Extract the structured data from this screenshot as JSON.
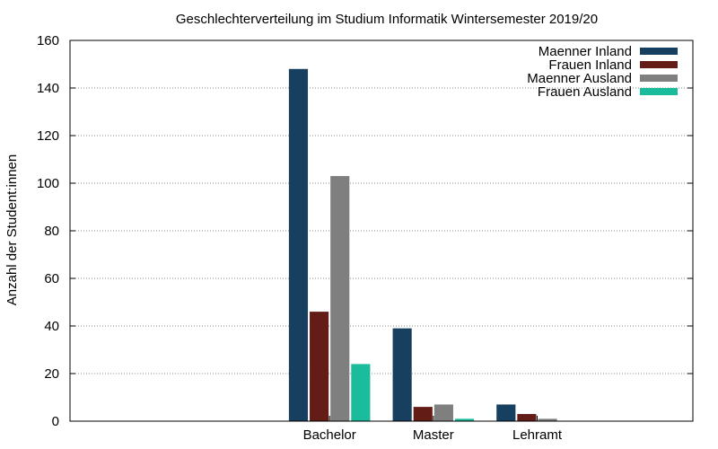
{
  "chart_data": {
    "type": "bar",
    "title": "Geschlechterverteilung im Studium Informatik Wintersemester 2019/20",
    "xlabel": "",
    "ylabel": "Anzahl der Student:innen",
    "ylim": [
      0,
      160
    ],
    "yticks": [
      0,
      20,
      40,
      60,
      80,
      100,
      120,
      140,
      160
    ],
    "x_slots": [
      "",
      "",
      "Bachelor",
      "Master",
      "Lehramt",
      ""
    ],
    "categories": [
      "Bachelor",
      "Master",
      "Lehramt"
    ],
    "grid": true,
    "legend_position": "top-right",
    "series": [
      {
        "name": "Maenner Inland",
        "color": "#173f5f",
        "values": [
          148,
          39,
          7
        ]
      },
      {
        "name": "Frauen Inland",
        "color": "#631c16",
        "values": [
          46,
          6,
          3
        ]
      },
      {
        "name": "Maenner Ausland",
        "color": "#7f7f7f",
        "values": [
          103,
          7,
          1
        ]
      },
      {
        "name": "Frauen Ausland",
        "color": "#1abc9c",
        "values": [
          24,
          1,
          0
        ]
      }
    ]
  }
}
